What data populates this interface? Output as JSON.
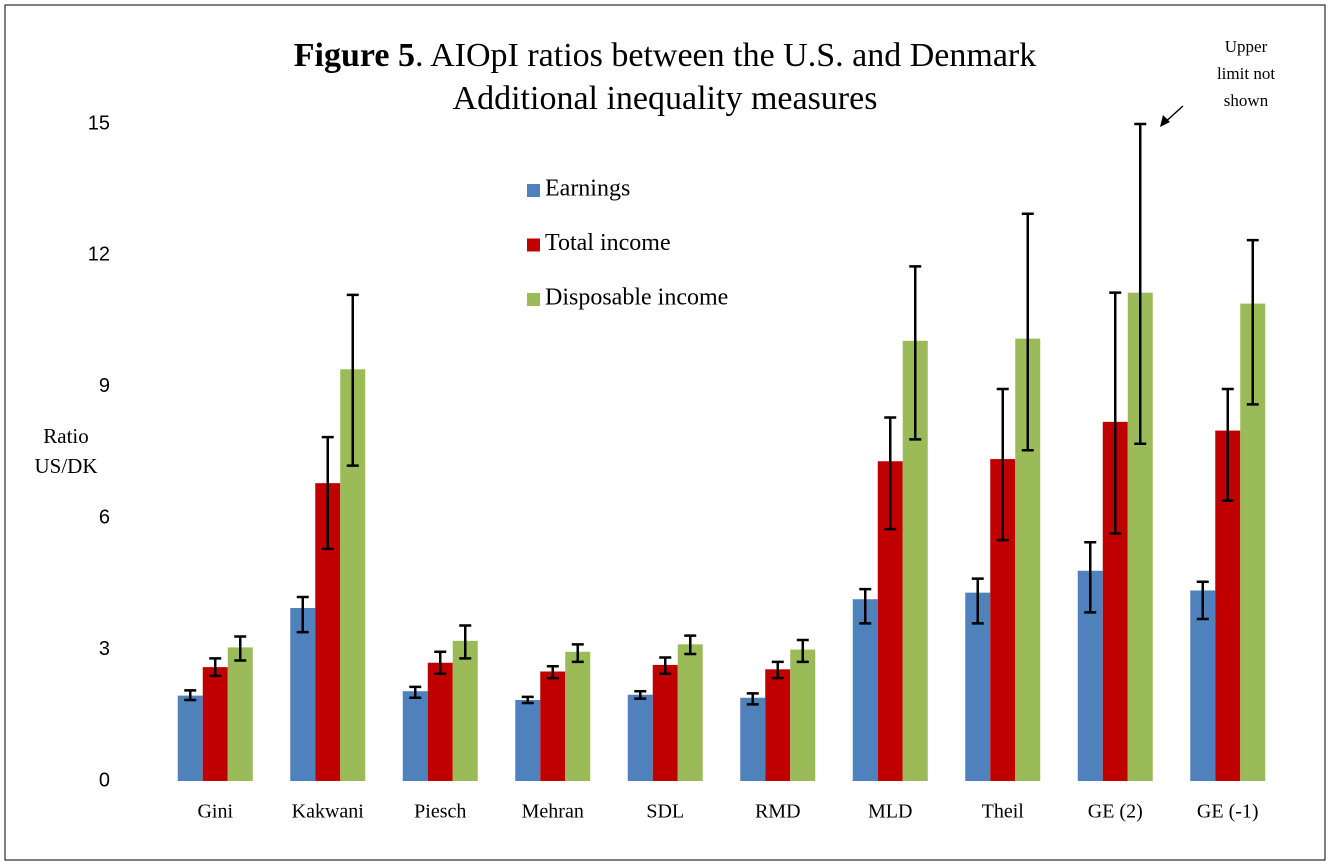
{
  "chart_data": {
    "type": "bar",
    "title": "Figure 5. AIOpI ratios between the U.S. and Denmark",
    "subtitle": "Additional inequality measures",
    "ylabel": [
      "Ratio",
      "US/DK"
    ],
    "annotation": [
      "Upper",
      "limit not",
      "shown"
    ],
    "categories": [
      "Gini",
      "Kakwani",
      "Piesch",
      "Mehran",
      "SDL",
      "RMD",
      "MLD",
      "Theil",
      "GE (2)",
      "GE (-1)"
    ],
    "series": [
      {
        "name": "Earnings",
        "color": "#4f81bd",
        "values": [
          1.95,
          3.95,
          2.05,
          1.85,
          1.97,
          1.9,
          4.15,
          4.3,
          4.8,
          4.35
        ],
        "error_low": [
          1.85,
          3.4,
          1.9,
          1.78,
          1.88,
          1.75,
          3.6,
          3.6,
          3.85,
          3.7
        ],
        "error_high": [
          2.07,
          4.2,
          2.15,
          1.92,
          2.05,
          2.0,
          4.38,
          4.62,
          5.45,
          4.55
        ]
      },
      {
        "name": "Total income",
        "color": "#c00000",
        "values": [
          2.6,
          6.8,
          2.7,
          2.5,
          2.65,
          2.55,
          7.3,
          7.35,
          8.2,
          8.0
        ],
        "error_low": [
          2.4,
          5.3,
          2.45,
          2.35,
          2.45,
          2.35,
          5.75,
          5.5,
          5.65,
          6.4
        ],
        "error_high": [
          2.8,
          7.85,
          2.95,
          2.62,
          2.82,
          2.72,
          8.3,
          8.95,
          11.15,
          8.95
        ]
      },
      {
        "name": "Disposable income",
        "color": "#9bbb59",
        "values": [
          3.05,
          9.4,
          3.2,
          2.95,
          3.12,
          3.0,
          10.05,
          10.1,
          11.15,
          10.9
        ],
        "error_low": [
          2.75,
          7.2,
          2.8,
          2.72,
          2.9,
          2.72,
          7.8,
          7.55,
          7.7,
          8.6
        ],
        "error_high": [
          3.3,
          11.1,
          3.55,
          3.12,
          3.32,
          3.22,
          11.75,
          12.95,
          15,
          12.35
        ]
      }
    ],
    "ylim": [
      0,
      15
    ],
    "yticks": [
      0,
      3,
      6,
      9,
      12,
      15
    ],
    "grid": false
  }
}
